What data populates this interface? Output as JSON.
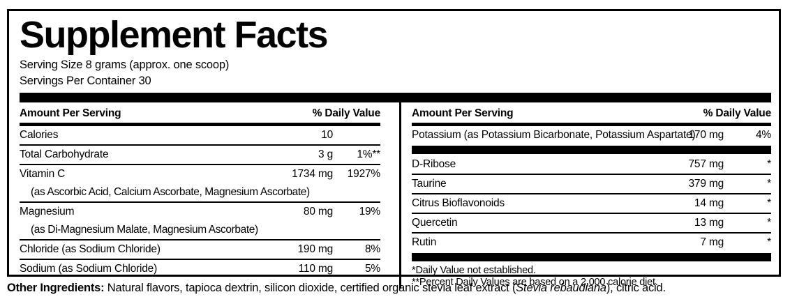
{
  "title": "Supplement Facts",
  "serving_size": "Serving Size 8 grams (approx. one scoop)",
  "servings_per_container": "Servings Per Container 30",
  "left_column": {
    "header_amount": "Amount Per Serving",
    "header_dv": "% Daily Value",
    "rows": [
      {
        "name": "Calories",
        "amount": "10",
        "dv": ""
      },
      {
        "name": "Total Carbohydrate",
        "amount": "3 g",
        "dv": "1%**"
      },
      {
        "name": "Vitamin C",
        "sub": "(as Ascorbic Acid, Calcium Ascorbate, Magnesium Ascorbate)",
        "amount": "1734 mg",
        "dv": "1927%"
      },
      {
        "name": "Magnesium",
        "sub": "(as Di-Magnesium Malate, Magnesium Ascorbate)",
        "amount": "80 mg",
        "dv": "19%"
      },
      {
        "name": "Chloride (as Sodium Chloride)",
        "amount": "190 mg",
        "dv": "8%"
      },
      {
        "name": "Sodium (as Sodium Chloride)",
        "amount": "110 mg",
        "dv": "5%"
      }
    ]
  },
  "right_column": {
    "header_amount": "Amount Per Serving",
    "header_dv": "% Daily Value",
    "rows": [
      {
        "name": "Potassium (as Potassium Bicarbonate, Potassium Aspartate)",
        "amount": "170 mg",
        "dv": "4%"
      },
      {
        "name": "D-Ribose",
        "amount": "757 mg",
        "dv": "*"
      },
      {
        "name": "Taurine",
        "amount": "379 mg",
        "dv": "*"
      },
      {
        "name": "Citrus Bioflavonoids",
        "amount": "14 mg",
        "dv": "*"
      },
      {
        "name": "Quercetin",
        "amount": "13 mg",
        "dv": "*"
      },
      {
        "name": "Rutin",
        "amount": "7 mg",
        "dv": "*"
      }
    ],
    "footnotes": [
      "*Daily Value not established.",
      "**Percent Daily Values are based on a 2,000 calorie diet."
    ]
  },
  "other_ingredients": {
    "label": "Other Ingredients:",
    "text_before_italic": " Natural flavors, tapioca dextrin, silicon dioxide, certified organic stevia leaf extract (",
    "italic": "Stevia rebaudiana",
    "text_after_italic": "), citric acid."
  },
  "colors": {
    "text": "#000000",
    "background": "#ffffff"
  }
}
